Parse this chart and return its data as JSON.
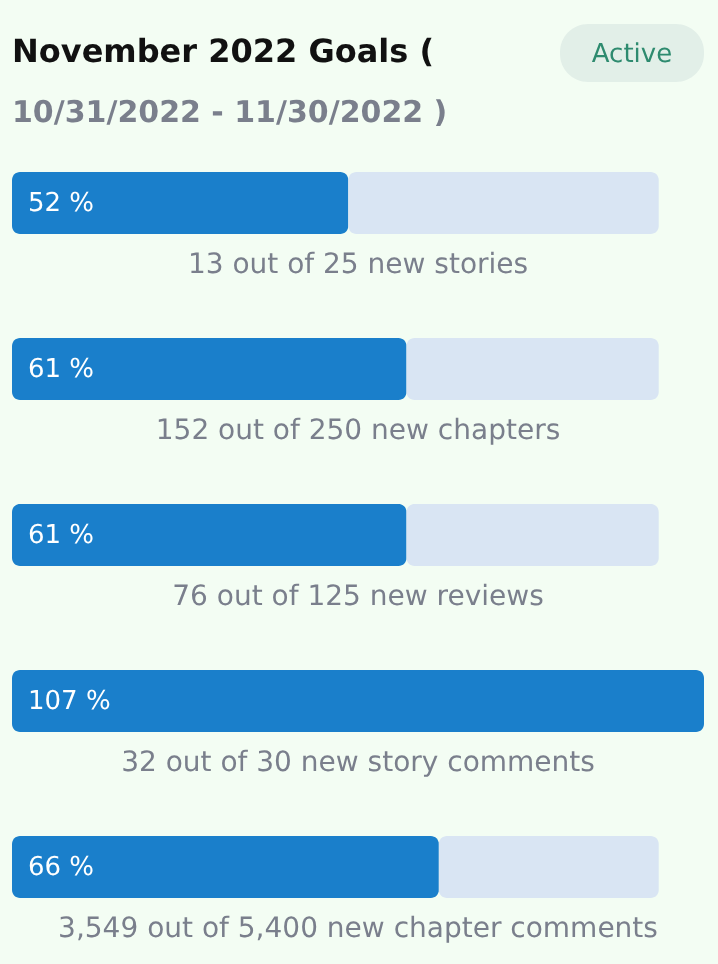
{
  "chart_data": {
    "type": "bar",
    "orientation": "horizontal",
    "stacked": true,
    "title": "November 2022 Goals (",
    "subtitle": "10/31/2022 - 11/30/2022 )",
    "annotations": [
      "Active"
    ],
    "categories": [
      "13 out of 25 new stories",
      "152 out of 250 new chapters",
      "76 out of 125 new reviews",
      "32 out of 30 new story comments",
      "3,549 out of 5,400 new chapter comments"
    ],
    "series": [
      {
        "color": "#1a7fcb",
        "values": [
          52,
          61,
          61,
          107,
          66
        ],
        "value_labels": [
          "52 %",
          "61 %",
          "61 %",
          "107 %",
          "66 %"
        ]
      },
      {
        "color": "#d9e5f3",
        "values": [
          48,
          39,
          39,
          0,
          34
        ]
      }
    ],
    "xlim": [
      0,
      107
    ],
    "grid": false,
    "legend": false
  }
}
